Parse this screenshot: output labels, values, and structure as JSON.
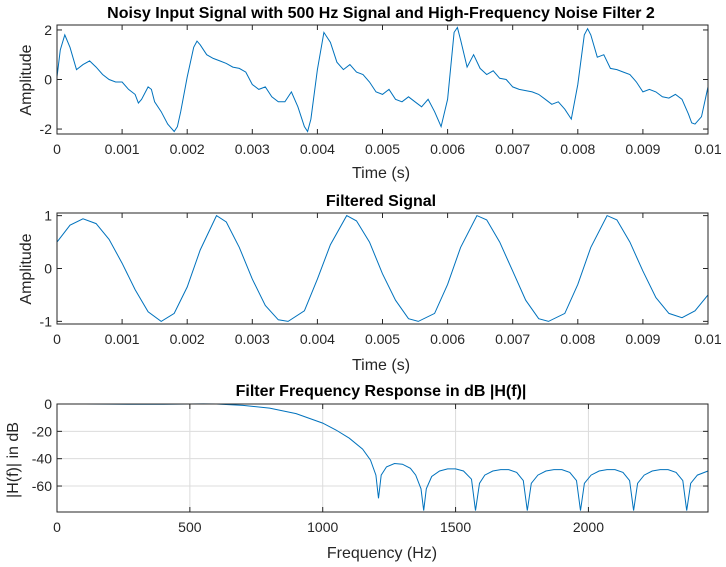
{
  "figure": {
    "line_color": "#0072BD",
    "grid_color": "#dcdcdc",
    "axis_color": "#262626"
  },
  "chart_data": [
    {
      "type": "line",
      "title": "Noisy Input Signal with 500 Hz Signal and High-Frequency Noise Filter 2",
      "xlabel": "Time (s)",
      "ylabel": "Amplitude",
      "xlim": [
        0,
        0.01
      ],
      "ylim": [
        -2.2,
        2.2
      ],
      "xticks": [
        0,
        0.001,
        0.002,
        0.003,
        0.004,
        0.005,
        0.006,
        0.007,
        0.008,
        0.009,
        0.01
      ],
      "xticklabels": [
        "0",
        "0.001",
        "0.002",
        "0.003",
        "0.004",
        "0.005",
        "0.006",
        "0.007",
        "0.008",
        "0.009",
        "0.01"
      ],
      "yticks": [
        -2,
        0,
        2
      ],
      "yticklabels": [
        "-2",
        "0",
        "2"
      ],
      "grid": false,
      "series": [
        {
          "x": [
            0,
            5e-05,
            0.00012,
            0.0002,
            0.0003,
            0.0004,
            0.0005,
            0.0006,
            0.0007,
            0.0008,
            0.0009,
            0.001,
            0.0011,
            0.0012,
            0.00125,
            0.0013,
            0.0014,
            0.00145,
            0.0015,
            0.0016,
            0.0017,
            0.0018,
            0.00185,
            0.0019,
            0.002,
            0.0021,
            0.00215,
            0.0022,
            0.0023,
            0.0024,
            0.0025,
            0.0026,
            0.0027,
            0.0028,
            0.0029,
            0.003,
            0.0031,
            0.0032,
            0.0033,
            0.0034,
            0.0035,
            0.0036,
            0.0037,
            0.0038,
            0.00385,
            0.0039,
            0.004,
            0.0041,
            0.0042,
            0.0043,
            0.0044,
            0.0045,
            0.0046,
            0.0047,
            0.0048,
            0.0049,
            0.005,
            0.0051,
            0.0052,
            0.0053,
            0.0054,
            0.0055,
            0.0056,
            0.0057,
            0.0058,
            0.0059,
            0.006,
            0.0061,
            0.00615,
            0.0062,
            0.0063,
            0.0064,
            0.0065,
            0.0066,
            0.0067,
            0.0068,
            0.0069,
            0.007,
            0.0071,
            0.0072,
            0.0073,
            0.0074,
            0.0075,
            0.0076,
            0.0077,
            0.0078,
            0.0079,
            0.008,
            0.0081,
            0.00815,
            0.0082,
            0.0083,
            0.0084,
            0.0085,
            0.0086,
            0.0087,
            0.0088,
            0.0089,
            0.009,
            0.0091,
            0.0092,
            0.0093,
            0.0094,
            0.0095,
            0.0096,
            0.0097,
            0.00975,
            0.0098,
            0.0099,
            0.01
          ],
          "y": [
            0.1,
            1.2,
            1.8,
            1.3,
            0.4,
            0.6,
            0.75,
            0.5,
            0.2,
            0.0,
            -0.1,
            -0.1,
            -0.4,
            -0.6,
            -0.95,
            -0.8,
            -0.3,
            -0.4,
            -0.9,
            -1.3,
            -1.8,
            -2.1,
            -1.9,
            -1.3,
            0.1,
            1.3,
            1.55,
            1.4,
            1.0,
            0.85,
            0.75,
            0.65,
            0.5,
            0.45,
            0.3,
            -0.2,
            -0.4,
            -0.3,
            -0.7,
            -0.9,
            -0.9,
            -0.5,
            -1.1,
            -1.9,
            -2.1,
            -1.6,
            0.4,
            1.9,
            1.5,
            0.7,
            0.4,
            0.6,
            0.3,
            0.2,
            -0.1,
            -0.5,
            -0.6,
            -0.4,
            -0.8,
            -0.9,
            -0.7,
            -0.9,
            -1.1,
            -0.8,
            -1.3,
            -1.9,
            -0.8,
            1.9,
            2.1,
            1.6,
            0.5,
            1.0,
            0.45,
            0.2,
            0.35,
            0.05,
            0.0,
            -0.3,
            -0.4,
            -0.45,
            -0.5,
            -0.6,
            -0.8,
            -1.0,
            -0.9,
            -1.2,
            -1.6,
            -0.2,
            1.8,
            2.05,
            1.8,
            0.9,
            1.0,
            0.45,
            0.4,
            0.3,
            0.2,
            -0.1,
            -0.5,
            -0.4,
            -0.5,
            -0.7,
            -0.75,
            -0.6,
            -0.8,
            -1.4,
            -1.75,
            -1.8,
            -1.5,
            -0.3
          ]
        }
      ]
    },
    {
      "type": "line",
      "title": "Filtered Signal",
      "xlabel": "Time (s)",
      "ylabel": "Amplitude",
      "xlim": [
        0,
        0.01
      ],
      "ylim": [
        -1.05,
        1.05
      ],
      "xticks": [
        0,
        0.001,
        0.002,
        0.003,
        0.004,
        0.005,
        0.006,
        0.007,
        0.008,
        0.009,
        0.01
      ],
      "xticklabels": [
        "0",
        "0.001",
        "0.002",
        "0.003",
        "0.004",
        "0.005",
        "0.006",
        "0.007",
        "0.008",
        "0.009",
        "0.01"
      ],
      "yticks": [
        -1,
        0,
        1
      ],
      "yticklabels": [
        "-1",
        "0",
        "1"
      ],
      "grid": false,
      "series": [
        {
          "x": [
            0,
            0.0002,
            0.0004,
            0.0006,
            0.0008,
            0.001,
            0.0012,
            0.0014,
            0.0016,
            0.0018,
            0.002,
            0.0022,
            0.00245,
            0.0026,
            0.0028,
            0.003,
            0.0032,
            0.0034,
            0.00355,
            0.0038,
            0.004,
            0.0042,
            0.00445,
            0.0046,
            0.0048,
            0.005,
            0.0052,
            0.0054,
            0.00555,
            0.0058,
            0.006,
            0.0062,
            0.00645,
            0.0066,
            0.0068,
            0.007,
            0.0072,
            0.0074,
            0.00755,
            0.0078,
            0.008,
            0.0082,
            0.00845,
            0.0086,
            0.0088,
            0.009,
            0.0092,
            0.0094,
            0.0096,
            0.0098,
            0.01
          ],
          "y": [
            0.5,
            0.82,
            0.94,
            0.85,
            0.55,
            0.1,
            -0.4,
            -0.82,
            -1.0,
            -0.85,
            -0.35,
            0.35,
            1.0,
            0.88,
            0.4,
            -0.2,
            -0.7,
            -0.97,
            -1.0,
            -0.8,
            -0.2,
            0.45,
            1.0,
            0.9,
            0.5,
            -0.1,
            -0.6,
            -0.95,
            -1.0,
            -0.85,
            -0.3,
            0.4,
            1.0,
            0.92,
            0.5,
            -0.05,
            -0.6,
            -0.95,
            -1.0,
            -0.85,
            -0.3,
            0.4,
            1.0,
            0.92,
            0.5,
            -0.05,
            -0.55,
            -0.85,
            -0.93,
            -0.8,
            -0.5
          ]
        }
      ]
    },
    {
      "type": "line",
      "title": "Filter Frequency Response in dB |H(f)|",
      "xlabel": "Frequency (Hz)",
      "ylabel": "|H(f)| in dB",
      "xlim": [
        0,
        2450
      ],
      "ylim": [
        -79,
        0
      ],
      "xticks": [
        0,
        500,
        1000,
        1500,
        2000
      ],
      "xticklabels": [
        "0",
        "500",
        "1000",
        "1500",
        "2000"
      ],
      "yticks": [
        0,
        -20,
        -40,
        -60
      ],
      "yticklabels": [
        "0",
        "-20",
        "-40",
        "-60"
      ],
      "grid": true,
      "series": [
        {
          "x": [
            0,
            100,
            200,
            300,
            400,
            500,
            550,
            600,
            700,
            800,
            900,
            1000,
            1050,
            1100,
            1150,
            1180,
            1200,
            1210,
            1220,
            1240,
            1270,
            1300,
            1330,
            1350,
            1370,
            1380,
            1390,
            1410,
            1440,
            1470,
            1500,
            1530,
            1560,
            1575,
            1590,
            1610,
            1640,
            1670,
            1700,
            1730,
            1755,
            1770,
            1785,
            1810,
            1840,
            1870,
            1900,
            1930,
            1955,
            1970,
            1985,
            2010,
            2040,
            2070,
            2100,
            2130,
            2155,
            2170,
            2185,
            2210,
            2240,
            2270,
            2300,
            2330,
            2355,
            2370,
            2385,
            2410,
            2450
          ],
          "y": [
            0,
            0,
            -0.1,
            -0.2,
            -0.2,
            0,
            0.1,
            0,
            -1,
            -3,
            -7,
            -14,
            -19,
            -25,
            -33,
            -41,
            -52,
            -69,
            -52,
            -46,
            -43.5,
            -44,
            -47,
            -52,
            -62,
            -78,
            -62,
            -53,
            -49,
            -47.5,
            -47.5,
            -49,
            -55,
            -78,
            -58,
            -52,
            -49,
            -48,
            -48,
            -50,
            -56,
            -78,
            -58,
            -52,
            -49,
            -48,
            -48,
            -50,
            -56,
            -78,
            -58,
            -52,
            -49,
            -48,
            -48,
            -50,
            -56,
            -78,
            -58,
            -52,
            -49,
            -48,
            -48,
            -50,
            -56,
            -78,
            -58,
            -52,
            -49
          ]
        }
      ]
    }
  ]
}
